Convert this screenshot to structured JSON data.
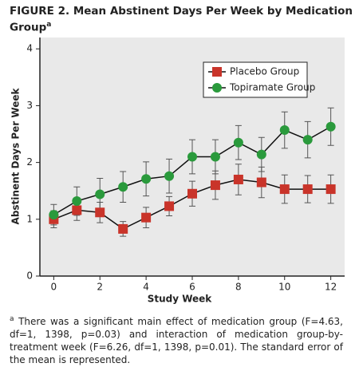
{
  "chart_data": {
    "type": "line",
    "title": "FIGURE 2. Mean Abstinent Days Per Week by Medication Group",
    "title_marker": "a",
    "x_label": "Study Week",
    "y_label": "Abstinent Days Per Week",
    "x": [
      0,
      1,
      2,
      3,
      4,
      5,
      6,
      7,
      8,
      9,
      10,
      11,
      12
    ],
    "series": [
      {
        "name": "Placebo Group",
        "color": "#c9342a",
        "marker": "square",
        "values": [
          1.0,
          1.16,
          1.12,
          0.83,
          1.03,
          1.23,
          1.45,
          1.6,
          1.7,
          1.65,
          1.53,
          1.53,
          1.53
        ],
        "errors": [
          0.15,
          0.18,
          0.18,
          0.13,
          0.18,
          0.17,
          0.22,
          0.25,
          0.27,
          0.27,
          0.25,
          0.24,
          0.25
        ]
      },
      {
        "name": "Topiramate Group",
        "color": "#2a9a3c",
        "marker": "circle",
        "values": [
          1.08,
          1.32,
          1.44,
          1.57,
          1.71,
          1.76,
          2.1,
          2.1,
          2.35,
          2.14,
          2.57,
          2.4,
          2.63
        ],
        "errors": [
          0.18,
          0.25,
          0.28,
          0.27,
          0.3,
          0.3,
          0.3,
          0.3,
          0.3,
          0.3,
          0.32,
          0.32,
          0.33
        ]
      }
    ],
    "xlim": [
      -0.6,
      12.6
    ],
    "xticks": [
      0,
      2,
      4,
      6,
      8,
      10,
      12
    ],
    "ylim": [
      0,
      4.2
    ],
    "yticks": [
      0,
      1,
      2,
      3,
      4
    ],
    "legend_position": "upper right",
    "footnote": {
      "marker": "a",
      "text": "There was a significant main effect of medication group (F=4.63, df=1, 1398, p=0.03) and interaction of medication group-by-treatment week (F=6.26, df=1, 1398, p=0.01). The standard error of the mean is represented."
    }
  }
}
